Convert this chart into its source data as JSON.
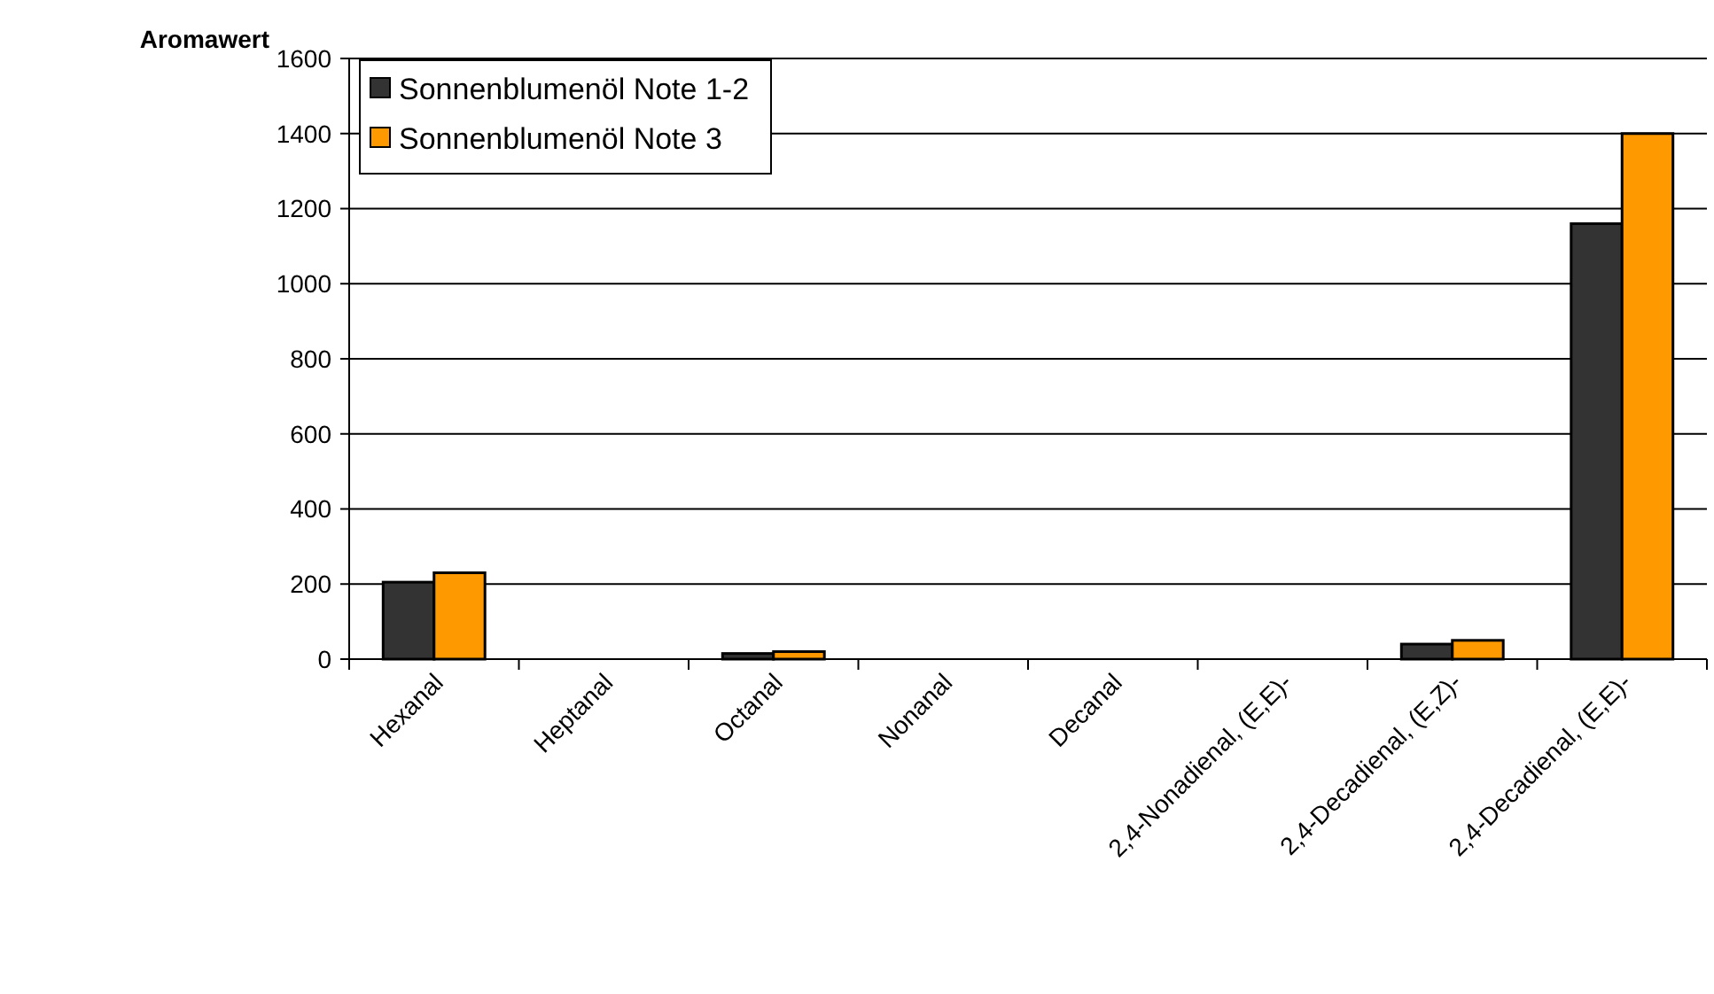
{
  "chart_data": {
    "type": "bar",
    "ylabel": "Aromawert",
    "categories": [
      "Hexanal",
      "Heptanal",
      "Octanal",
      "Nonanal",
      "Decanal",
      "2,4-Nonadienal, (E,E)-",
      "2,4-Decadienal, (E,Z)-",
      "2,4-Decadienal, (E,E)-"
    ],
    "series": [
      {
        "name": "Sonnenblumenöl Note 1-2",
        "color": "#333333",
        "values": [
          205,
          0,
          15,
          0,
          0,
          0,
          40,
          1160
        ]
      },
      {
        "name": "Sonnenblumenöl Note 3",
        "color": "#ff9900",
        "values": [
          230,
          0,
          20,
          0,
          0,
          0,
          50,
          1400
        ]
      }
    ],
    "ylim": [
      0,
      1600
    ],
    "yticks": [
      0,
      200,
      400,
      600,
      800,
      1000,
      1200,
      1400,
      1600
    ],
    "grid": "y",
    "legend": "top left"
  }
}
